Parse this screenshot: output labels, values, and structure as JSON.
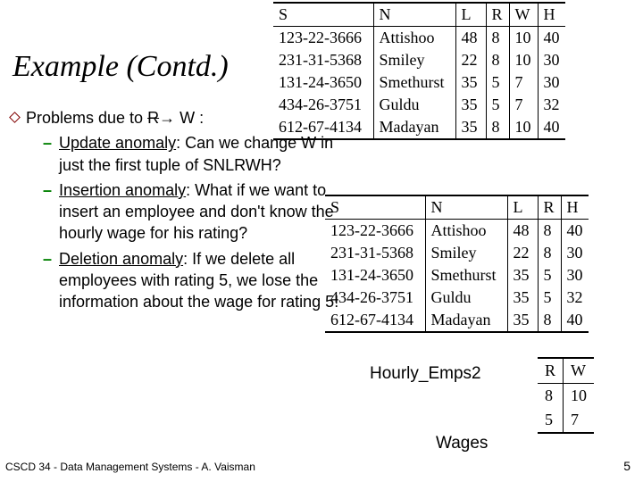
{
  "title": "Example (Contd.)",
  "main_line_prefix": "Problems due to ",
  "main_line_r": "R",
  "main_line_arrow": "→",
  "main_line_suffix": "    W :",
  "bullets": [
    {
      "underlined": "Update anomaly",
      "rest": ":  Can we change W in just the first tuple of SNLRWH?"
    },
    {
      "underlined": "Insertion anomaly",
      "rest": ":  What if we want to insert an employee and don't know the hourly wage for his rating?"
    },
    {
      "underlined": "Deletion anomaly",
      "rest": ": If we delete all employees with rating 5, we lose the information about the wage for rating 5!"
    }
  ],
  "table1": {
    "headers": [
      "S",
      "N",
      "L",
      "R",
      "W",
      "H"
    ],
    "rows": [
      [
        "123-22-3666",
        "Attishoo",
        "48",
        "8",
        "10",
        "40"
      ],
      [
        "231-31-5368",
        "Smiley",
        "22",
        "8",
        "10",
        "30"
      ],
      [
        "131-24-3650",
        "Smethurst",
        "35",
        "5",
        "7",
        "30"
      ],
      [
        "434-26-3751",
        "Guldu",
        "35",
        "5",
        "7",
        "32"
      ],
      [
        "612-67-4134",
        "Madayan",
        "35",
        "8",
        "10",
        "40"
      ]
    ],
    "col_widths": [
      "112px",
      "92px",
      "34px",
      "26px",
      "32px",
      "30px"
    ]
  },
  "table2": {
    "headers": [
      "S",
      "N",
      "L",
      "R",
      "H"
    ],
    "rows": [
      [
        "123-22-3666",
        "Attishoo",
        "48",
        "8",
        "40"
      ],
      [
        "231-31-5368",
        "Smiley",
        "22",
        "8",
        "30"
      ],
      [
        "131-24-3650",
        "Smethurst",
        "35",
        "5",
        "30"
      ],
      [
        "434-26-3751",
        "Guldu",
        "35",
        "5",
        "32"
      ],
      [
        "612-67-4134",
        "Madayan",
        "35",
        "8",
        "40"
      ]
    ],
    "col_widths": [
      "112px",
      "92px",
      "34px",
      "26px",
      "30px"
    ]
  },
  "label_he2": "Hourly_Emps2",
  "label_wages": "Wages",
  "table3": {
    "headers": [
      "R",
      "W"
    ],
    "rows": [
      [
        "8",
        "10"
      ],
      [
        "5",
        "7"
      ]
    ],
    "col_widths": [
      "28px",
      "30px"
    ]
  },
  "footer": "CSCD 34 - Data Management Systems - A. Vaisman",
  "page_num": "5",
  "colors": {
    "bullet_border": "#800000",
    "dash": "#008000",
    "text": "#000000"
  }
}
